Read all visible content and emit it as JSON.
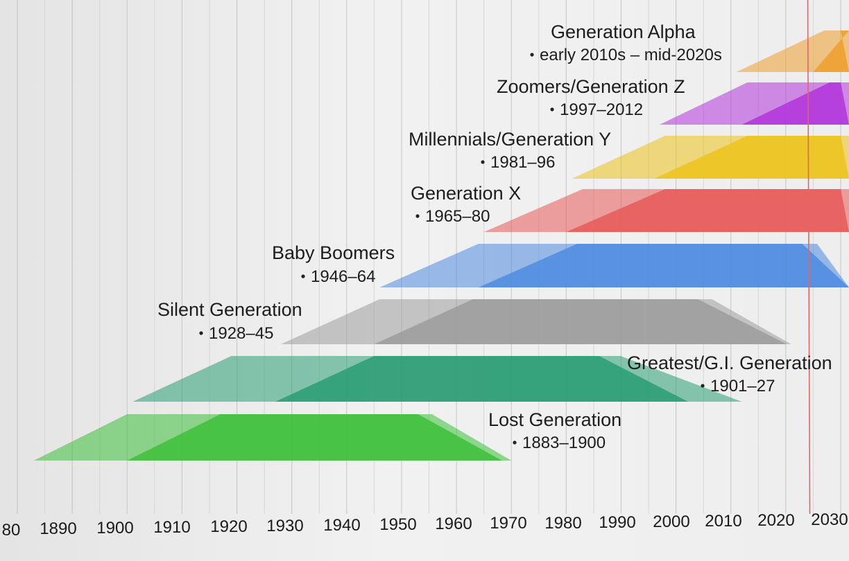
{
  "chart_data": {
    "type": "bar",
    "xlim": [
      1880,
      2030
    ],
    "x_ticks": [
      "80",
      "1890",
      "1900",
      "1910",
      "1920",
      "1930",
      "1940",
      "1950",
      "1960",
      "1970",
      "1980",
      "1990",
      "2000",
      "2010",
      "2020",
      "2030"
    ],
    "reference_line": {
      "x": 2024,
      "color": "#e06666"
    },
    "grid": true,
    "series": [
      {
        "name": "Lost Generation",
        "range_label": "1883–1900",
        "birth_start": 1883,
        "birth_end": 1900,
        "life_start": 1900,
        "life_end": 1953,
        "color": "#3dbf3a"
      },
      {
        "name": "Greatest/G.I. Generation",
        "range_label": "1901–27",
        "birth_start": 1901,
        "birth_end": 1927,
        "life_start": 1919,
        "life_end": 1986,
        "color": "#2a9e74"
      },
      {
        "name": "Silent Generation",
        "range_label": "1928–45",
        "birth_start": 1928,
        "birth_end": 1945,
        "life_start": 1946,
        "life_end": 2004,
        "color": "#9c9c9c"
      },
      {
        "name": "Baby Boomers",
        "range_label": "1946–64",
        "birth_start": 1946,
        "birth_end": 1964,
        "life_start": 1964,
        "life_end": 2023,
        "color": "#4f8be0"
      },
      {
        "name": "Generation X",
        "range_label": "1965–80",
        "birth_start": 1965,
        "birth_end": 1980,
        "life_start": 1983,
        "life_end": 2030,
        "color": "#e85a58"
      },
      {
        "name": "Millennials/Generation Y",
        "range_label": "1981–96",
        "birth_start": 1981,
        "birth_end": 1996,
        "life_start": 1998,
        "life_end": 2030,
        "color": "#ecc31c"
      },
      {
        "name": "Zoomers/Generation Z",
        "range_label": "1997–2012",
        "birth_start": 1997,
        "birth_end": 2012,
        "life_start": 2013,
        "life_end": 2030,
        "color": "#b134d9"
      },
      {
        "name": "Generation Alpha",
        "range_label": "early 2010s – mid-2020s",
        "birth_start": 2011,
        "birth_end": 2025,
        "life_start": 2027,
        "life_end": 2030,
        "color": "#ee9f2c"
      }
    ]
  }
}
